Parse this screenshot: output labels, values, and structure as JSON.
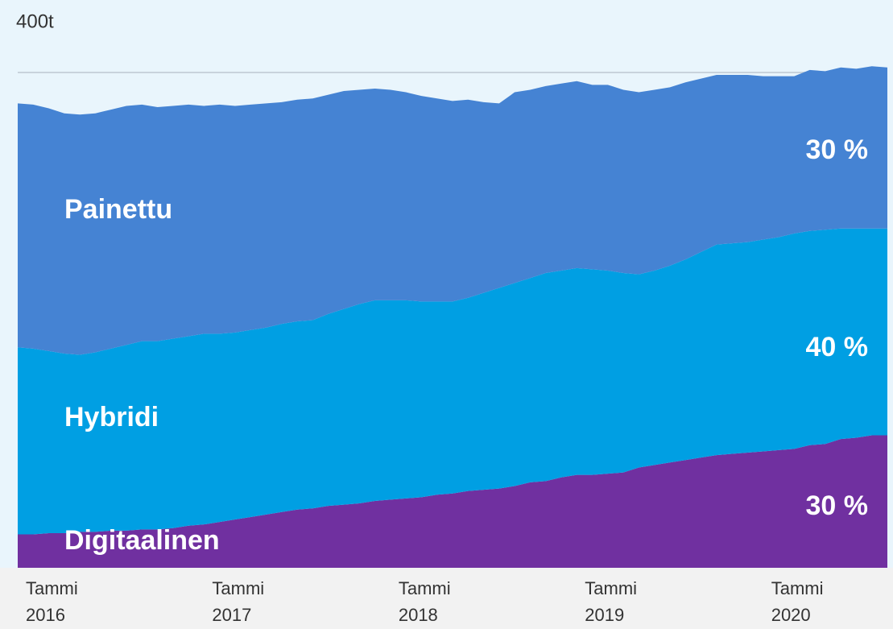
{
  "chart_data": {
    "type": "stacked_area",
    "categories": [
      "Tammi 2016",
      null,
      null,
      null,
      null,
      null,
      null,
      null,
      null,
      null,
      null,
      null,
      "Tammi 2017",
      null,
      null,
      null,
      null,
      null,
      null,
      null,
      null,
      null,
      null,
      null,
      "Tammi 2018",
      null,
      null,
      null,
      null,
      null,
      null,
      null,
      null,
      null,
      null,
      null,
      "Tammi 2019",
      null,
      null,
      null,
      null,
      null,
      null,
      null,
      null,
      null,
      null,
      null,
      "Tammi 2020",
      null,
      null,
      null,
      null,
      null,
      null,
      null,
      null
    ],
    "series": [
      {
        "name": "Digitaalinen",
        "color": "#7030a0",
        "values": [
          27,
          27,
          28,
          28,
          29,
          29,
          30,
          30,
          31,
          31,
          32,
          34,
          35,
          37,
          39,
          41,
          43,
          45,
          47,
          48,
          50,
          51,
          52,
          54,
          55,
          56,
          57,
          59,
          60,
          62,
          63,
          64,
          66,
          69,
          70,
          73,
          75,
          75,
          76,
          77,
          81,
          83,
          85,
          87,
          89,
          91,
          92,
          93,
          94,
          95,
          96,
          99,
          100,
          104,
          105,
          107,
          107
        ]
      },
      {
        "name": "Hybridi",
        "color": "#009fe3",
        "values": [
          151,
          150,
          147,
          145,
          143,
          145,
          147,
          150,
          152,
          152,
          153,
          153,
          154,
          152,
          151,
          151,
          151,
          152,
          152,
          152,
          155,
          158,
          161,
          162,
          161,
          160,
          158,
          156,
          155,
          156,
          159,
          162,
          164,
          165,
          168,
          167,
          167,
          166,
          164,
          161,
          156,
          157,
          159,
          162,
          166,
          170,
          170,
          170,
          171,
          172,
          174,
          173,
          173,
          170,
          169,
          167,
          167
        ]
      },
      {
        "name": "Painettu",
        "color": "#4583d3",
        "values": [
          197,
          197,
          196,
          194,
          194,
          193,
          193,
          193,
          191,
          189,
          188,
          187,
          184,
          185,
          183,
          182,
          181,
          179,
          179,
          179,
          177,
          176,
          173,
          171,
          170,
          168,
          166,
          164,
          162,
          160,
          154,
          149,
          154,
          152,
          151,
          151,
          151,
          149,
          150,
          148,
          147,
          146,
          144,
          143,
          140,
          137,
          136,
          135,
          132,
          130,
          127,
          130,
          128,
          130,
          129,
          131,
          130
        ]
      }
    ],
    "annotations": [
      "30 %",
      "40 %",
      "30 %"
    ],
    "ylim": [
      0,
      452
    ],
    "yticks": [
      {
        "value": 400,
        "label": "400t"
      }
    ],
    "grid": true
  }
}
